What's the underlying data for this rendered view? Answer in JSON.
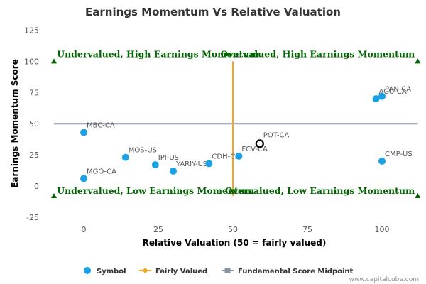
{
  "chart_data": {
    "type": "scatter",
    "title": "Earnings Momentum Vs Relative Valuation",
    "xlabel": "Relative Valuation (50 = fairly valued)",
    "ylabel": "Earnings Momentum Score",
    "xlim": [
      -10,
      112
    ],
    "ylim": [
      -25,
      125
    ],
    "x_ticks": [
      "0",
      "25",
      "50",
      "75",
      "100"
    ],
    "y_ticks": [
      "-25",
      "0",
      "25",
      "50",
      "75",
      "100",
      "125"
    ],
    "grid": false,
    "legend_position": "bottom",
    "points": [
      {
        "label": "MBC-CA",
        "x": 0,
        "y": 43
      },
      {
        "label": "MGO-CA",
        "x": 0,
        "y": 6
      },
      {
        "label": "MOS-US",
        "x": 14,
        "y": 23
      },
      {
        "label": "IPI-US",
        "x": 24,
        "y": 17
      },
      {
        "label": "YARIY-US",
        "x": 30,
        "y": 12
      },
      {
        "label": "CDH-CA",
        "x": 42,
        "y": 18
      },
      {
        "label": "FCV-CA",
        "x": 52,
        "y": 24
      },
      {
        "label": "AGU-CA",
        "x": 98,
        "y": 70
      },
      {
        "label": "PAN-CA",
        "x": 100,
        "y": 72
      },
      {
        "label": "CMP-US",
        "x": 100,
        "y": 20
      }
    ],
    "highlight_point": {
      "label": "POT-CA",
      "x": 59,
      "y": 34
    },
    "fairly_valued_x": 50,
    "fairly_valued_y_range": [
      -8,
      100
    ],
    "midpoint_y": 50,
    "midpoint_x_range": [
      -10,
      112
    ],
    "quadrant_labels": {
      "top_left": "Undervalued, High Earnings Momentum",
      "top_right": "Overvalued, High Earnings Momentum",
      "bottom_left": "Undervalued, Low Earnings Momentum",
      "bottom_right": "Overvalued, Low Earnings Momentum"
    },
    "legend": [
      "Symbol",
      "Fairly Valued",
      "Fundamental Score Midpoint"
    ],
    "colors": {
      "symbol": "#1aa1e6",
      "fairly_valued": "#f5a623",
      "midpoint": "#8c94a0",
      "quadrant_text": "#006400",
      "highlight_stroke": "#000000"
    }
  },
  "credit": "www.capitalcube.com"
}
